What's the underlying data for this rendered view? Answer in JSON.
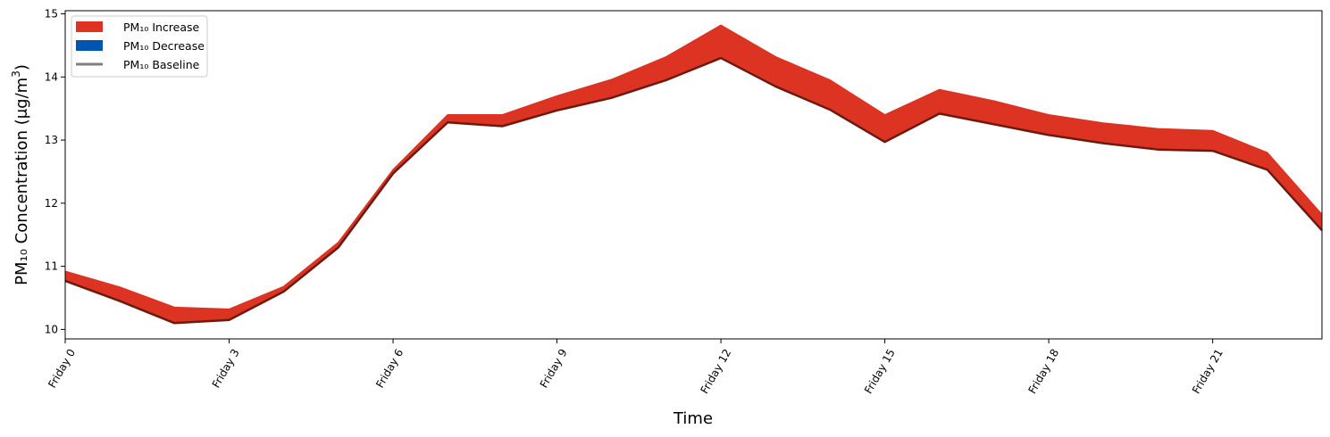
{
  "chart_data": {
    "type": "area",
    "xlabel": "Time",
    "ylabel_main": "PM₁₀ Concentration (μg/m",
    "ylabel_sup": "3",
    "ylabel_close": ")",
    "xlim": [
      0,
      23
    ],
    "ylim": [
      9.85,
      15.05
    ],
    "x": [
      0,
      1,
      2,
      3,
      4,
      5,
      6,
      7,
      8,
      9,
      10,
      11,
      12,
      13,
      14,
      15,
      16,
      17,
      18,
      19,
      20,
      21,
      22,
      23
    ],
    "xticks": [
      0,
      3,
      6,
      9,
      12,
      15,
      18,
      21
    ],
    "xtick_labels": [
      "Friday 0",
      "Friday 3",
      "Friday 6",
      "Friday 9",
      "Friday 12",
      "Friday 15",
      "Friday 18",
      "Friday 21"
    ],
    "yticks": [
      10,
      11,
      12,
      13,
      14,
      15
    ],
    "ytick_labels": [
      "10",
      "11",
      "12",
      "13",
      "14",
      "15"
    ],
    "series": [
      {
        "name": "PM₁₀ Baseline",
        "values": [
          10.77,
          10.45,
          10.1,
          10.15,
          10.6,
          11.3,
          12.47,
          13.28,
          13.22,
          13.47,
          13.67,
          13.95,
          14.3,
          13.85,
          13.48,
          12.97,
          13.42,
          13.25,
          13.08,
          12.95,
          12.85,
          12.83,
          12.53,
          11.57
        ]
      },
      {
        "name": "PM₁₀ Increase",
        "values": [
          10.92,
          10.67,
          10.35,
          10.32,
          10.68,
          11.38,
          12.53,
          13.4,
          13.4,
          13.7,
          13.96,
          14.32,
          14.82,
          14.32,
          13.95,
          13.4,
          13.8,
          13.62,
          13.4,
          13.27,
          13.18,
          13.15,
          12.8,
          11.82
        ]
      }
    ],
    "legend": [
      {
        "label": "PM₁₀ Increase",
        "kind": "patch",
        "color": "#dd3322"
      },
      {
        "label": "PM₁₀ Decrease",
        "kind": "patch",
        "color": "#0055b3"
      },
      {
        "label": "PM₁₀ Baseline",
        "kind": "line",
        "color": "#808080"
      }
    ],
    "legend_position": "top-left",
    "colors": {
      "increase": "#dd3322",
      "decrease": "#0055b3",
      "baseline_line": "#6b1a10",
      "legend_baseline": "#808080"
    },
    "grid": false
  }
}
